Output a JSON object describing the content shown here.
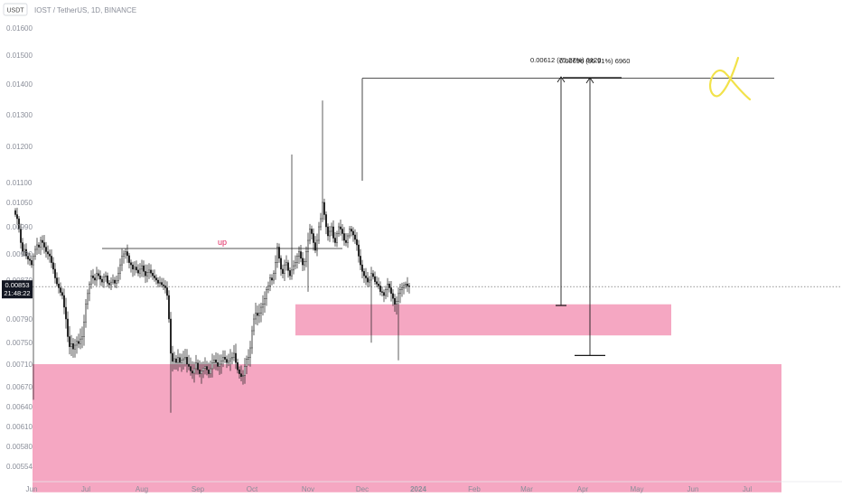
{
  "header": {
    "currency_badge": "USDT",
    "title": "IOST / TetherUS, 1D, BINANCE"
  },
  "price_tag": {
    "price": "0.00853",
    "countdown": "21:48:22"
  },
  "annotations": {
    "up_label": "up",
    "measure_label_1": "0.00612 (75.27%) 6120",
    "measure_label_2": "0.00696 (95.91%) 6960"
  },
  "colors": {
    "zone": "#f5a7c2",
    "candle": "#1a1a1a",
    "line": "#1a1a1a",
    "scribble": "#f2e24a",
    "up_label": "#e0245e",
    "price_tag_bg": "#131722"
  },
  "chart_data": {
    "type": "candlestick",
    "title": "IOST / TetherUS, 1D, BINANCE",
    "yticks": [
      "0.01600",
      "0.01500",
      "0.01400",
      "0.01300",
      "0.01200",
      "0.01100",
      "0.01050",
      "0.00990",
      "0.00930",
      "0.00870",
      "0.00830",
      "0.00790",
      "0.00750",
      "0.00710",
      "0.00670",
      "0.00640",
      "0.00610",
      "0.00580",
      "0.00554"
    ],
    "xticks": [
      "Jun",
      "Jul",
      "Aug",
      "Sep",
      "Oct",
      "Nov",
      "Dec",
      "2024",
      "Feb",
      "Mar",
      "Apr",
      "May",
      "Jun",
      "Jul"
    ],
    "ylabel": "",
    "xlabel": "",
    "last_price": 0.00853,
    "zones": [
      {
        "from": "2023-10-25",
        "to": "2024-05-20",
        "low": 0.00762,
        "high": 0.00815
      },
      {
        "from": "2023-05-10",
        "to": "2024-07-20",
        "low": 0.0052,
        "high": 0.0071
      }
    ],
    "levels": [
      {
        "label": "up",
        "price": 0.00942,
        "from": "2023-07-10",
        "to": "2023-11-20"
      },
      {
        "price": 0.0142,
        "from": "2023-12-01",
        "to": "2024-07-16"
      }
    ],
    "measures": [
      {
        "date": "2024-03-20",
        "from": 0.00813,
        "to": 0.01425,
        "change": "0.00612 (75.27%) 6120"
      },
      {
        "date": "2024-04-05",
        "from": 0.00726,
        "to": 0.01422,
        "change": "0.00696 (95.91%) 6960"
      }
    ],
    "series": [
      {
        "close": [
          0.0102,
          0.0101,
          0.00985,
          0.00955,
          0.00935,
          0.0094,
          0.00925,
          0.00918,
          0.00915,
          0.00905,
          0.00925,
          0.0094,
          0.0095,
          0.00945,
          0.0096,
          0.00955,
          0.00945,
          0.00935,
          0.0093,
          0.00925,
          0.0091,
          0.00895,
          0.00875,
          0.0086,
          0.0085,
          0.00838,
          0.0083,
          0.0081,
          0.0079,
          0.0076,
          0.00742,
          0.00748,
          0.00738,
          0.00745,
          0.00752,
          0.00748,
          0.00756,
          0.0076,
          0.00785,
          0.00815,
          0.00835,
          0.0086,
          0.0088,
          0.00875,
          0.0087,
          0.00885,
          0.0088,
          0.00872,
          0.00865,
          0.00878,
          0.0088,
          0.00862,
          0.00858,
          0.00865,
          0.0087,
          0.00862,
          0.00868,
          0.00885,
          0.00905,
          0.00925,
          0.0093,
          0.00935,
          0.00926,
          0.0091,
          0.00905,
          0.00895,
          0.009,
          0.00893,
          0.00886,
          0.00895,
          0.00903,
          0.0089,
          0.0088,
          0.00888,
          0.00893,
          0.00886,
          0.0088,
          0.00875,
          0.0087,
          0.00862,
          0.00864,
          0.00858,
          0.00855,
          0.0085,
          0.0083,
          0.0079,
          0.0073,
          0.00715,
          0.0072,
          0.00713,
          0.00722,
          0.00713,
          0.00717,
          0.0072,
          0.00723,
          0.0071,
          0.00706,
          0.00698,
          0.00694,
          0.00702,
          0.00712,
          0.007,
          0.00693,
          0.00698,
          0.00703,
          0.00706,
          0.007,
          0.00693,
          0.00702,
          0.00712,
          0.00718,
          0.00713,
          0.00706,
          0.0071,
          0.00716,
          0.00723,
          0.00719,
          0.00713,
          0.00716,
          0.0072,
          0.00723,
          0.0073,
          0.00713,
          0.007,
          0.00693,
          0.00688,
          0.0069,
          0.00706,
          0.00719,
          0.00723,
          0.0074,
          0.0077,
          0.0079,
          0.008,
          0.00796,
          0.008,
          0.0081,
          0.00815,
          0.00825,
          0.00845,
          0.00855,
          0.00875,
          0.0087,
          0.00885,
          0.0091,
          0.00945,
          0.0092,
          0.00895,
          0.00885,
          0.00905,
          0.0091,
          0.00892,
          0.0088,
          0.00893,
          0.00903,
          0.0091,
          0.00925,
          0.00935,
          0.0092,
          0.00905,
          0.00913,
          0.00935,
          0.0096,
          0.00985,
          0.00975,
          0.00955,
          0.00938,
          0.0096,
          0.0099,
          0.0101,
          0.0105,
          0.0102,
          0.0099,
          0.0097,
          0.0098,
          0.0099,
          0.00965,
          0.00955,
          0.00975,
          0.0099,
          0.00985,
          0.00975,
          0.0096,
          0.00955,
          0.0097,
          0.00985,
          0.0098,
          0.00972,
          0.00962,
          0.0095,
          0.00925,
          0.00905,
          0.0089,
          0.0088,
          0.00875,
          0.00865,
          0.0087,
          0.00885,
          0.00878,
          0.00866,
          0.0086,
          0.00855,
          0.0084,
          0.00838,
          0.0083,
          0.00845,
          0.0086,
          0.0085,
          0.00835,
          0.00825,
          0.00815,
          0.0082,
          0.00835,
          0.00845,
          0.0085,
          0.00856,
          0.0086,
          0.00855,
          0.00853
        ]
      }
    ]
  }
}
